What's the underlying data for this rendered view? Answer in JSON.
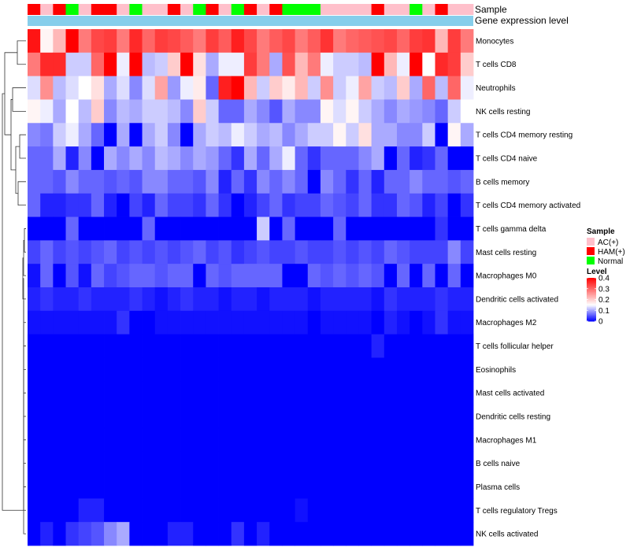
{
  "chart_data": {
    "type": "heatmap",
    "annotation_labels": [
      "Sample",
      "Gene expression level"
    ],
    "row_labels": [
      "Monocytes",
      "T cells CD8",
      "Neutrophils",
      "NK cells resting",
      "T cells CD4 memory resting",
      "T cells CD4 naive",
      "B cells memory",
      "T cells CD4 memory activated",
      "T cells gamma delta",
      "Mast cells resting",
      "Macrophages M0",
      "Dendritic cells activated",
      "Macrophages M2",
      "T cells follicular helper",
      "Eosinophils",
      "Mast cells activated",
      "Dendritic cells resting",
      "Macrophages M1",
      "B cells naive",
      "Plasma cells",
      "T cells regulatory  Tregs",
      "NK cells activated"
    ],
    "column_groups": [
      "HAM(+)",
      "AC(+)",
      "HAM(+)",
      "Normal",
      "AC(+)",
      "HAM(+)",
      "HAM(+)",
      "AC(+)",
      "Normal",
      "AC(+)",
      "AC(+)",
      "HAM(+)",
      "AC(+)",
      "Normal",
      "HAM(+)",
      "AC(+)",
      "Normal",
      "HAM(+)",
      "AC(+)",
      "HAM(+)",
      "Normal",
      "Normal",
      "Normal",
      "AC(+)",
      "AC(+)",
      "AC(+)",
      "AC(+)",
      "HAM(+)",
      "AC(+)",
      "AC(+)",
      "Normal",
      "AC(+)",
      "HAM(+)",
      "AC(+)",
      "AC(+)"
    ],
    "values": [
      [
        0.38,
        0.16,
        0.22,
        0.4,
        0.28,
        0.33,
        0.34,
        0.28,
        0.36,
        0.3,
        0.34,
        0.33,
        0.31,
        0.28,
        0.34,
        0.31,
        0.37,
        0.33,
        0.28,
        0.31,
        0.33,
        0.28,
        0.31,
        0.35,
        0.28,
        0.3,
        0.31,
        0.32,
        0.33,
        0.3,
        0.34,
        0.35,
        0.22,
        0.34,
        0.28
      ],
      [
        0.28,
        0.36,
        0.36,
        0.12,
        0.12,
        0.3,
        0.4,
        0.14,
        0.4,
        0.11,
        0.12,
        0.2,
        0.4,
        0.18,
        0.1,
        0.14,
        0.14,
        0.34,
        0.28,
        0.1,
        0.32,
        0.22,
        0.28,
        0.14,
        0.12,
        0.12,
        0.11,
        0.4,
        0.22,
        0.14,
        0.4,
        0.15,
        0.36,
        0.34,
        0.2
      ],
      [
        0.13,
        0.26,
        0.11,
        0.13,
        0.15,
        0.18,
        0.1,
        0.13,
        0.08,
        0.13,
        0.24,
        0.09,
        0.14,
        0.17,
        0.06,
        0.37,
        0.4,
        0.22,
        0.12,
        0.2,
        0.17,
        0.22,
        0.12,
        0.26,
        0.12,
        0.14,
        0.24,
        0.12,
        0.11,
        0.2,
        0.1,
        0.3,
        0.11,
        0.3,
        0.14
      ],
      [
        0.16,
        0.14,
        0.1,
        0.15,
        0.11,
        0.2,
        0.08,
        0.11,
        0.1,
        0.12,
        0.12,
        0.11,
        0.08,
        0.2,
        0.12,
        0.06,
        0.06,
        0.1,
        0.08,
        0.05,
        0.1,
        0.08,
        0.08,
        0.16,
        0.13,
        0.16,
        0.12,
        0.1,
        0.08,
        0.1,
        0.09,
        0.08,
        0.06,
        0.12,
        0.15
      ],
      [
        0.08,
        0.07,
        0.12,
        0.14,
        0.1,
        0.06,
        0.0,
        0.1,
        0.0,
        0.1,
        0.12,
        0.08,
        0.0,
        0.1,
        0.12,
        0.11,
        0.14,
        0.12,
        0.1,
        0.11,
        0.08,
        0.1,
        0.12,
        0.12,
        0.16,
        0.12,
        0.18,
        0.1,
        0.1,
        0.08,
        0.08,
        0.12,
        0.0,
        0.16,
        0.1
      ],
      [
        0.06,
        0.06,
        0.1,
        0.02,
        0.08,
        0.0,
        0.1,
        0.08,
        0.1,
        0.08,
        0.11,
        0.1,
        0.08,
        0.1,
        0.09,
        0.06,
        0.03,
        0.1,
        0.06,
        0.1,
        0.14,
        0.06,
        0.03,
        0.06,
        0.06,
        0.06,
        0.08,
        0.1,
        0.0,
        0.06,
        0.02,
        0.03,
        0.06,
        0.0,
        0.0
      ],
      [
        0.06,
        0.06,
        0.05,
        0.08,
        0.06,
        0.06,
        0.05,
        0.06,
        0.05,
        0.08,
        0.08,
        0.06,
        0.06,
        0.05,
        0.08,
        0.02,
        0.06,
        0.03,
        0.08,
        0.06,
        0.08,
        0.06,
        0.0,
        0.08,
        0.06,
        0.03,
        0.06,
        0.02,
        0.06,
        0.06,
        0.08,
        0.06,
        0.06,
        0.05,
        0.06
      ],
      [
        0.06,
        0.02,
        0.02,
        0.03,
        0.03,
        0.06,
        0.02,
        0.0,
        0.04,
        0.02,
        0.06,
        0.04,
        0.04,
        0.03,
        0.06,
        0.03,
        0.0,
        0.02,
        0.04,
        0.06,
        0.03,
        0.04,
        0.04,
        0.06,
        0.05,
        0.04,
        0.06,
        0.03,
        0.03,
        0.06,
        0.05,
        0.02,
        0.04,
        0.0,
        0.03
      ],
      [
        0.0,
        0.0,
        0.0,
        0.06,
        0.0,
        0.0,
        0.0,
        0.0,
        0.0,
        0.06,
        0.0,
        0.0,
        0.0,
        0.0,
        0.0,
        0.0,
        0.0,
        0.0,
        0.12,
        0.0,
        0.06,
        0.0,
        0.0,
        0.0,
        0.06,
        0.0,
        0.0,
        0.0,
        0.0,
        0.0,
        0.0,
        0.0,
        0.03,
        0.0,
        0.0
      ],
      [
        0.04,
        0.06,
        0.04,
        0.05,
        0.04,
        0.05,
        0.06,
        0.04,
        0.05,
        0.04,
        0.05,
        0.04,
        0.05,
        0.06,
        0.04,
        0.05,
        0.03,
        0.04,
        0.05,
        0.04,
        0.04,
        0.05,
        0.04,
        0.04,
        0.05,
        0.04,
        0.05,
        0.04,
        0.06,
        0.05,
        0.04,
        0.04,
        0.04,
        0.08,
        0.04
      ],
      [
        0.01,
        0.06,
        0.0,
        0.05,
        0.01,
        0.06,
        0.04,
        0.05,
        0.06,
        0.06,
        0.05,
        0.06,
        0.06,
        0.0,
        0.06,
        0.05,
        0.06,
        0.06,
        0.06,
        0.06,
        0.0,
        0.0,
        0.06,
        0.05,
        0.06,
        0.05,
        0.06,
        0.05,
        0.0,
        0.06,
        0.0,
        0.06,
        0.0,
        0.06,
        0.0
      ],
      [
        0.02,
        0.03,
        0.02,
        0.02,
        0.03,
        0.02,
        0.02,
        0.02,
        0.03,
        0.02,
        0.01,
        0.02,
        0.03,
        0.02,
        0.02,
        0.01,
        0.02,
        0.02,
        0.01,
        0.02,
        0.02,
        0.02,
        0.01,
        0.02,
        0.02,
        0.02,
        0.02,
        0.01,
        0.03,
        0.02,
        0.02,
        0.02,
        0.03,
        0.02,
        0.02
      ],
      [
        0.01,
        0.01,
        0.01,
        0.01,
        0.01,
        0.01,
        0.01,
        0.03,
        0.0,
        0.0,
        0.01,
        0.01,
        0.01,
        0.01,
        0.01,
        0.01,
        0.01,
        0.01,
        0.01,
        0.01,
        0.01,
        0.01,
        0.0,
        0.01,
        0.01,
        0.01,
        0.01,
        0.0,
        0.02,
        0.01,
        0.0,
        0.01,
        0.03,
        0.01,
        0.01
      ],
      [
        0.0,
        0.0,
        0.0,
        0.0,
        0.0,
        0.0,
        0.0,
        0.0,
        0.0,
        0.0,
        0.0,
        0.0,
        0.0,
        0.0,
        0.0,
        0.0,
        0.0,
        0.0,
        0.0,
        0.0,
        0.0,
        0.0,
        0.0,
        0.0,
        0.0,
        0.0,
        0.0,
        0.02,
        0.0,
        0.0,
        0.0,
        0.0,
        0.0,
        0.0,
        0.0
      ],
      [
        0.0,
        0.0,
        0.0,
        0.0,
        0.0,
        0.0,
        0.0,
        0.0,
        0.0,
        0.0,
        0.0,
        0.0,
        0.0,
        0.0,
        0.0,
        0.0,
        0.0,
        0.0,
        0.0,
        0.0,
        0.0,
        0.0,
        0.0,
        0.0,
        0.0,
        0.0,
        0.0,
        0.0,
        0.0,
        0.0,
        0.0,
        0.0,
        0.0,
        0.0,
        0.0
      ],
      [
        0.0,
        0.0,
        0.0,
        0.0,
        0.0,
        0.0,
        0.0,
        0.0,
        0.0,
        0.0,
        0.0,
        0.0,
        0.0,
        0.0,
        0.0,
        0.0,
        0.0,
        0.0,
        0.0,
        0.0,
        0.0,
        0.0,
        0.0,
        0.0,
        0.0,
        0.0,
        0.0,
        0.0,
        0.0,
        0.0,
        0.0,
        0.0,
        0.0,
        0.0,
        0.0
      ],
      [
        0.0,
        0.0,
        0.0,
        0.0,
        0.0,
        0.0,
        0.0,
        0.0,
        0.0,
        0.0,
        0.0,
        0.0,
        0.0,
        0.0,
        0.0,
        0.0,
        0.0,
        0.0,
        0.0,
        0.0,
        0.0,
        0.0,
        0.0,
        0.0,
        0.0,
        0.0,
        0.0,
        0.0,
        0.0,
        0.0,
        0.0,
        0.0,
        0.0,
        0.0,
        0.0
      ],
      [
        0.0,
        0.0,
        0.0,
        0.0,
        0.0,
        0.0,
        0.0,
        0.0,
        0.0,
        0.0,
        0.0,
        0.0,
        0.0,
        0.0,
        0.0,
        0.0,
        0.0,
        0.0,
        0.0,
        0.0,
        0.0,
        0.0,
        0.0,
        0.0,
        0.0,
        0.0,
        0.0,
        0.0,
        0.0,
        0.0,
        0.0,
        0.0,
        0.0,
        0.0,
        0.0
      ],
      [
        0.0,
        0.0,
        0.0,
        0.0,
        0.0,
        0.0,
        0.0,
        0.0,
        0.0,
        0.0,
        0.0,
        0.0,
        0.0,
        0.0,
        0.0,
        0.0,
        0.0,
        0.0,
        0.0,
        0.0,
        0.0,
        0.0,
        0.0,
        0.0,
        0.0,
        0.0,
        0.0,
        0.0,
        0.0,
        0.0,
        0.0,
        0.0,
        0.0,
        0.0,
        0.0
      ],
      [
        0.0,
        0.0,
        0.0,
        0.0,
        0.0,
        0.0,
        0.0,
        0.0,
        0.0,
        0.0,
        0.0,
        0.0,
        0.0,
        0.0,
        0.0,
        0.0,
        0.0,
        0.0,
        0.0,
        0.0,
        0.0,
        0.0,
        0.0,
        0.0,
        0.0,
        0.0,
        0.0,
        0.0,
        0.0,
        0.0,
        0.0,
        0.0,
        0.0,
        0.0,
        0.0
      ],
      [
        0.0,
        0.0,
        0.0,
        0.0,
        0.02,
        0.02,
        0.0,
        0.0,
        0.0,
        0.0,
        0.0,
        0.0,
        0.0,
        0.0,
        0.0,
        0.0,
        0.0,
        0.0,
        0.0,
        0.0,
        0.0,
        0.01,
        0.0,
        0.0,
        0.0,
        0.0,
        0.0,
        0.0,
        0.0,
        0.0,
        0.0,
        0.0,
        0.0,
        0.0,
        0.0
      ],
      [
        0.0,
        0.02,
        0.0,
        0.03,
        0.04,
        0.05,
        0.08,
        0.1,
        0.0,
        0.0,
        0.0,
        0.02,
        0.02,
        0.0,
        0.0,
        0.0,
        0.03,
        0.0,
        0.02,
        0.0,
        0.0,
        0.0,
        0.0,
        0.0,
        0.0,
        0.0,
        0.0,
        0.0,
        0.0,
        0.0,
        0.0,
        0.0,
        0.0,
        0.0,
        0.0
      ]
    ],
    "row_order_note": "rows clustered; dendrogram shown at left",
    "legend": {
      "sample_title": "Sample",
      "sample_entries": [
        {
          "label": "AC(+)",
          "color": "#ffc0cb"
        },
        {
          "label": "HAM(+)",
          "color": "#ff0000"
        },
        {
          "label": "Normal",
          "color": "#00ff00"
        }
      ],
      "level_title": "Level",
      "level_ticks": [
        "0.4",
        "0.3",
        "0.2",
        "0.1",
        "0"
      ],
      "level_tick_values": [
        0.4,
        0.3,
        0.2,
        0.1,
        0.0
      ],
      "range": [
        0,
        0.4
      ]
    },
    "colors": {
      "low": "#0000ff",
      "mid": "#ffffff",
      "high": "#ff0000",
      "mid_value": 0.15,
      "gene_expression_bar": "#87ceeb"
    }
  }
}
